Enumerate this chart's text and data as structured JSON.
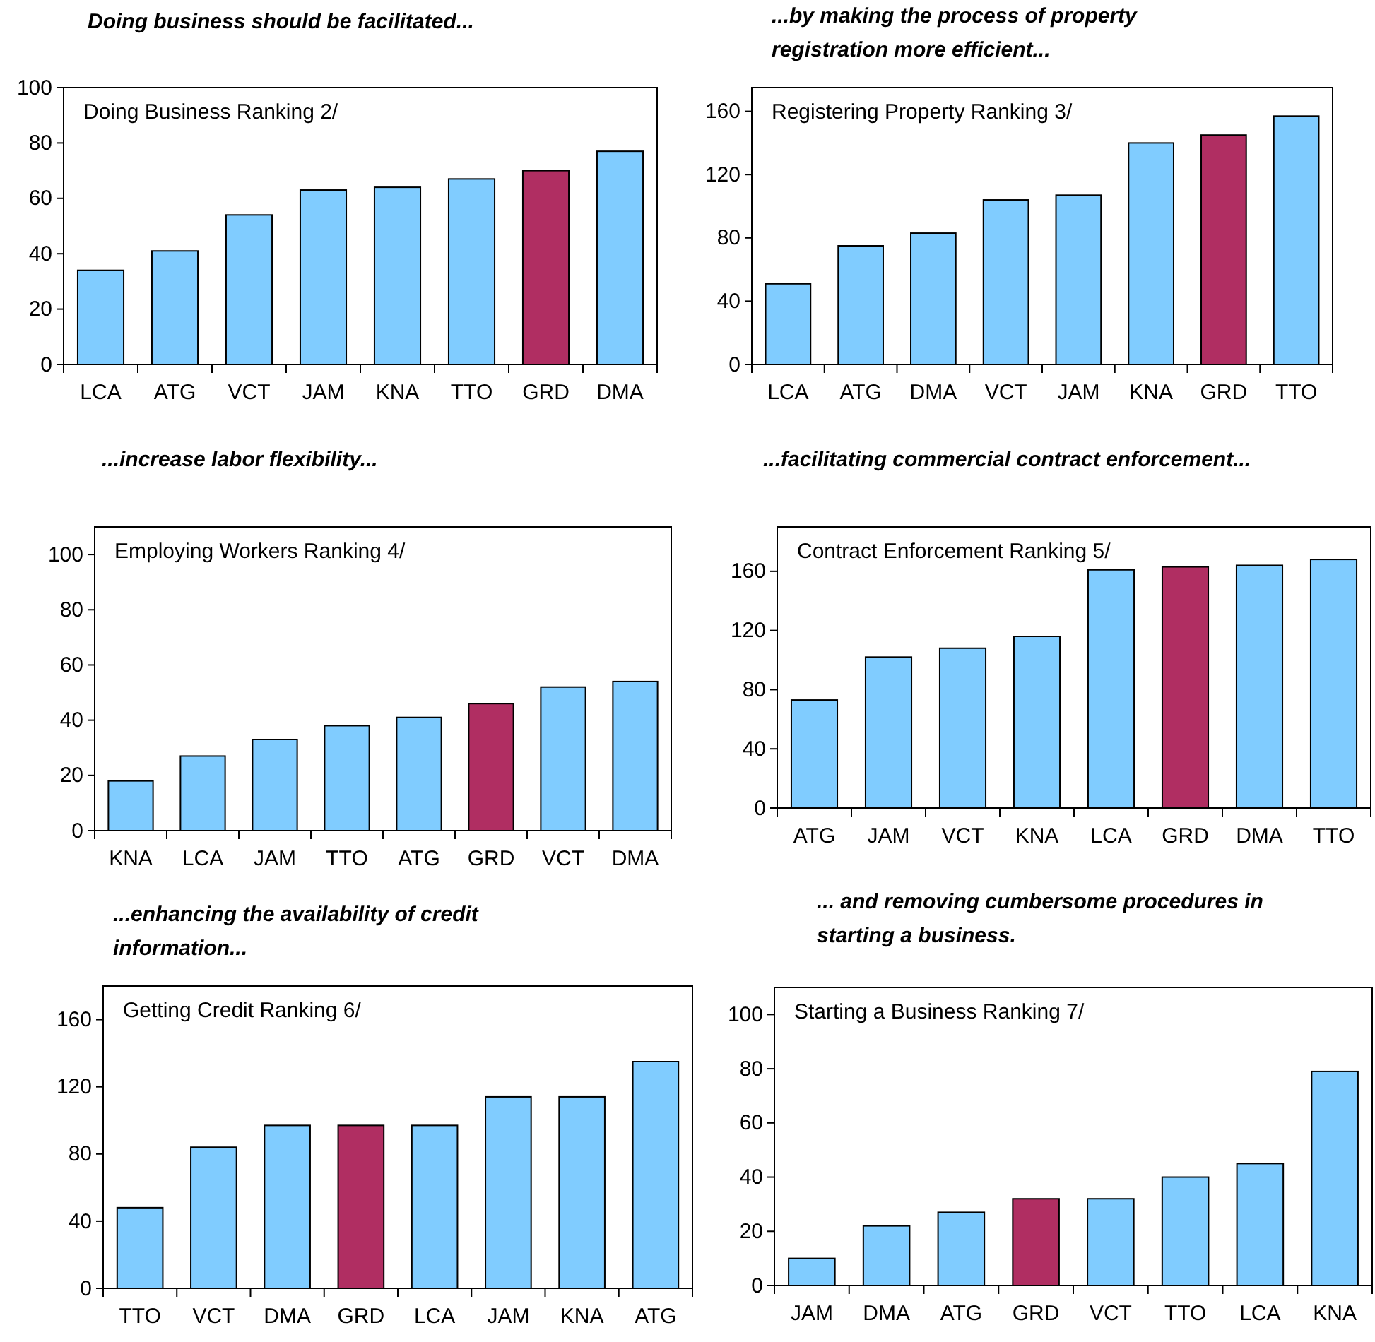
{
  "chart_data": [
    {
      "type": "bar",
      "title": "Doing business should be facilitated...",
      "subtitle": "Doing Business Ranking 2/",
      "categories": [
        "LCA",
        "ATG",
        "VCT",
        "JAM",
        "KNA",
        "TTO",
        "GRD",
        "DMA"
      ],
      "values": [
        34,
        41,
        54,
        63,
        64,
        67,
        70,
        77
      ],
      "colors": [
        "#80ccff",
        "#80ccff",
        "#80ccff",
        "#80ccff",
        "#80ccff",
        "#80ccff",
        "#b02e62",
        "#80ccff"
      ],
      "ylim": [
        0,
        100
      ],
      "yticks": [
        0,
        20,
        40,
        60,
        80,
        100
      ],
      "grid": false
    },
    {
      "type": "bar",
      "title": "...by making the process of property registration more efficient...",
      "subtitle": "Registering Property Ranking 3/",
      "categories": [
        "LCA",
        "ATG",
        "DMA",
        "VCT",
        "JAM",
        "KNA",
        "GRD",
        "TTO"
      ],
      "values": [
        51,
        75,
        83,
        104,
        107,
        140,
        145,
        157
      ],
      "colors": [
        "#80ccff",
        "#80ccff",
        "#80ccff",
        "#80ccff",
        "#80ccff",
        "#80ccff",
        "#b02e62",
        "#80ccff"
      ],
      "ylim": [
        0,
        175
      ],
      "yticks": [
        0,
        40,
        80,
        120,
        160
      ],
      "grid": false
    },
    {
      "type": "bar",
      "title": "...increase labor flexibility...",
      "subtitle": "Employing Workers Ranking 4/",
      "categories": [
        "KNA",
        "LCA",
        "JAM",
        "TTO",
        "ATG",
        "GRD",
        "VCT",
        "DMA"
      ],
      "values": [
        18,
        27,
        33,
        38,
        41,
        46,
        52,
        54
      ],
      "colors": [
        "#80ccff",
        "#80ccff",
        "#80ccff",
        "#80ccff",
        "#80ccff",
        "#b02e62",
        "#80ccff",
        "#80ccff"
      ],
      "ylim": [
        0,
        110
      ],
      "yticks": [
        0,
        20,
        40,
        60,
        80,
        100
      ],
      "grid": false
    },
    {
      "type": "bar",
      "title": "...facilitating commercial contract enforcement...",
      "subtitle": "Contract Enforcement Ranking 5/",
      "categories": [
        "ATG",
        "JAM",
        "VCT",
        "KNA",
        "LCA",
        "GRD",
        "DMA",
        "TTO"
      ],
      "values": [
        73,
        102,
        108,
        116,
        161,
        163,
        164,
        168
      ],
      "colors": [
        "#80ccff",
        "#80ccff",
        "#80ccff",
        "#80ccff",
        "#80ccff",
        "#b02e62",
        "#80ccff",
        "#80ccff"
      ],
      "ylim": [
        0,
        190
      ],
      "yticks": [
        0,
        40,
        80,
        120,
        160
      ],
      "grid": false
    },
    {
      "type": "bar",
      "title": "...enhancing the availability of credit information...",
      "subtitle": "Getting Credit Ranking 6/",
      "categories": [
        "TTO",
        "VCT",
        "DMA",
        "GRD",
        "LCA",
        "JAM",
        "KNA",
        "ATG"
      ],
      "values": [
        48,
        84,
        97,
        97,
        97,
        114,
        114,
        135
      ],
      "colors": [
        "#80ccff",
        "#80ccff",
        "#80ccff",
        "#b02e62",
        "#80ccff",
        "#80ccff",
        "#80ccff",
        "#80ccff"
      ],
      "ylim": [
        0,
        180
      ],
      "yticks": [
        0,
        40,
        80,
        120,
        160
      ],
      "grid": false
    },
    {
      "type": "bar",
      "title": "... and removing cumbersome procedures in starting a business.",
      "subtitle": "Starting a Business Ranking 7/",
      "categories": [
        "JAM",
        "DMA",
        "ATG",
        "GRD",
        "VCT",
        "TTO",
        "LCA",
        "KNA"
      ],
      "values": [
        10,
        22,
        27,
        32,
        32,
        40,
        45,
        79
      ],
      "colors": [
        "#80ccff",
        "#80ccff",
        "#80ccff",
        "#b02e62",
        "#80ccff",
        "#80ccff",
        "#80ccff",
        "#80ccff"
      ],
      "ylim": [
        0,
        110
      ],
      "yticks": [
        0,
        20,
        40,
        60,
        80,
        100
      ],
      "grid": false
    }
  ]
}
